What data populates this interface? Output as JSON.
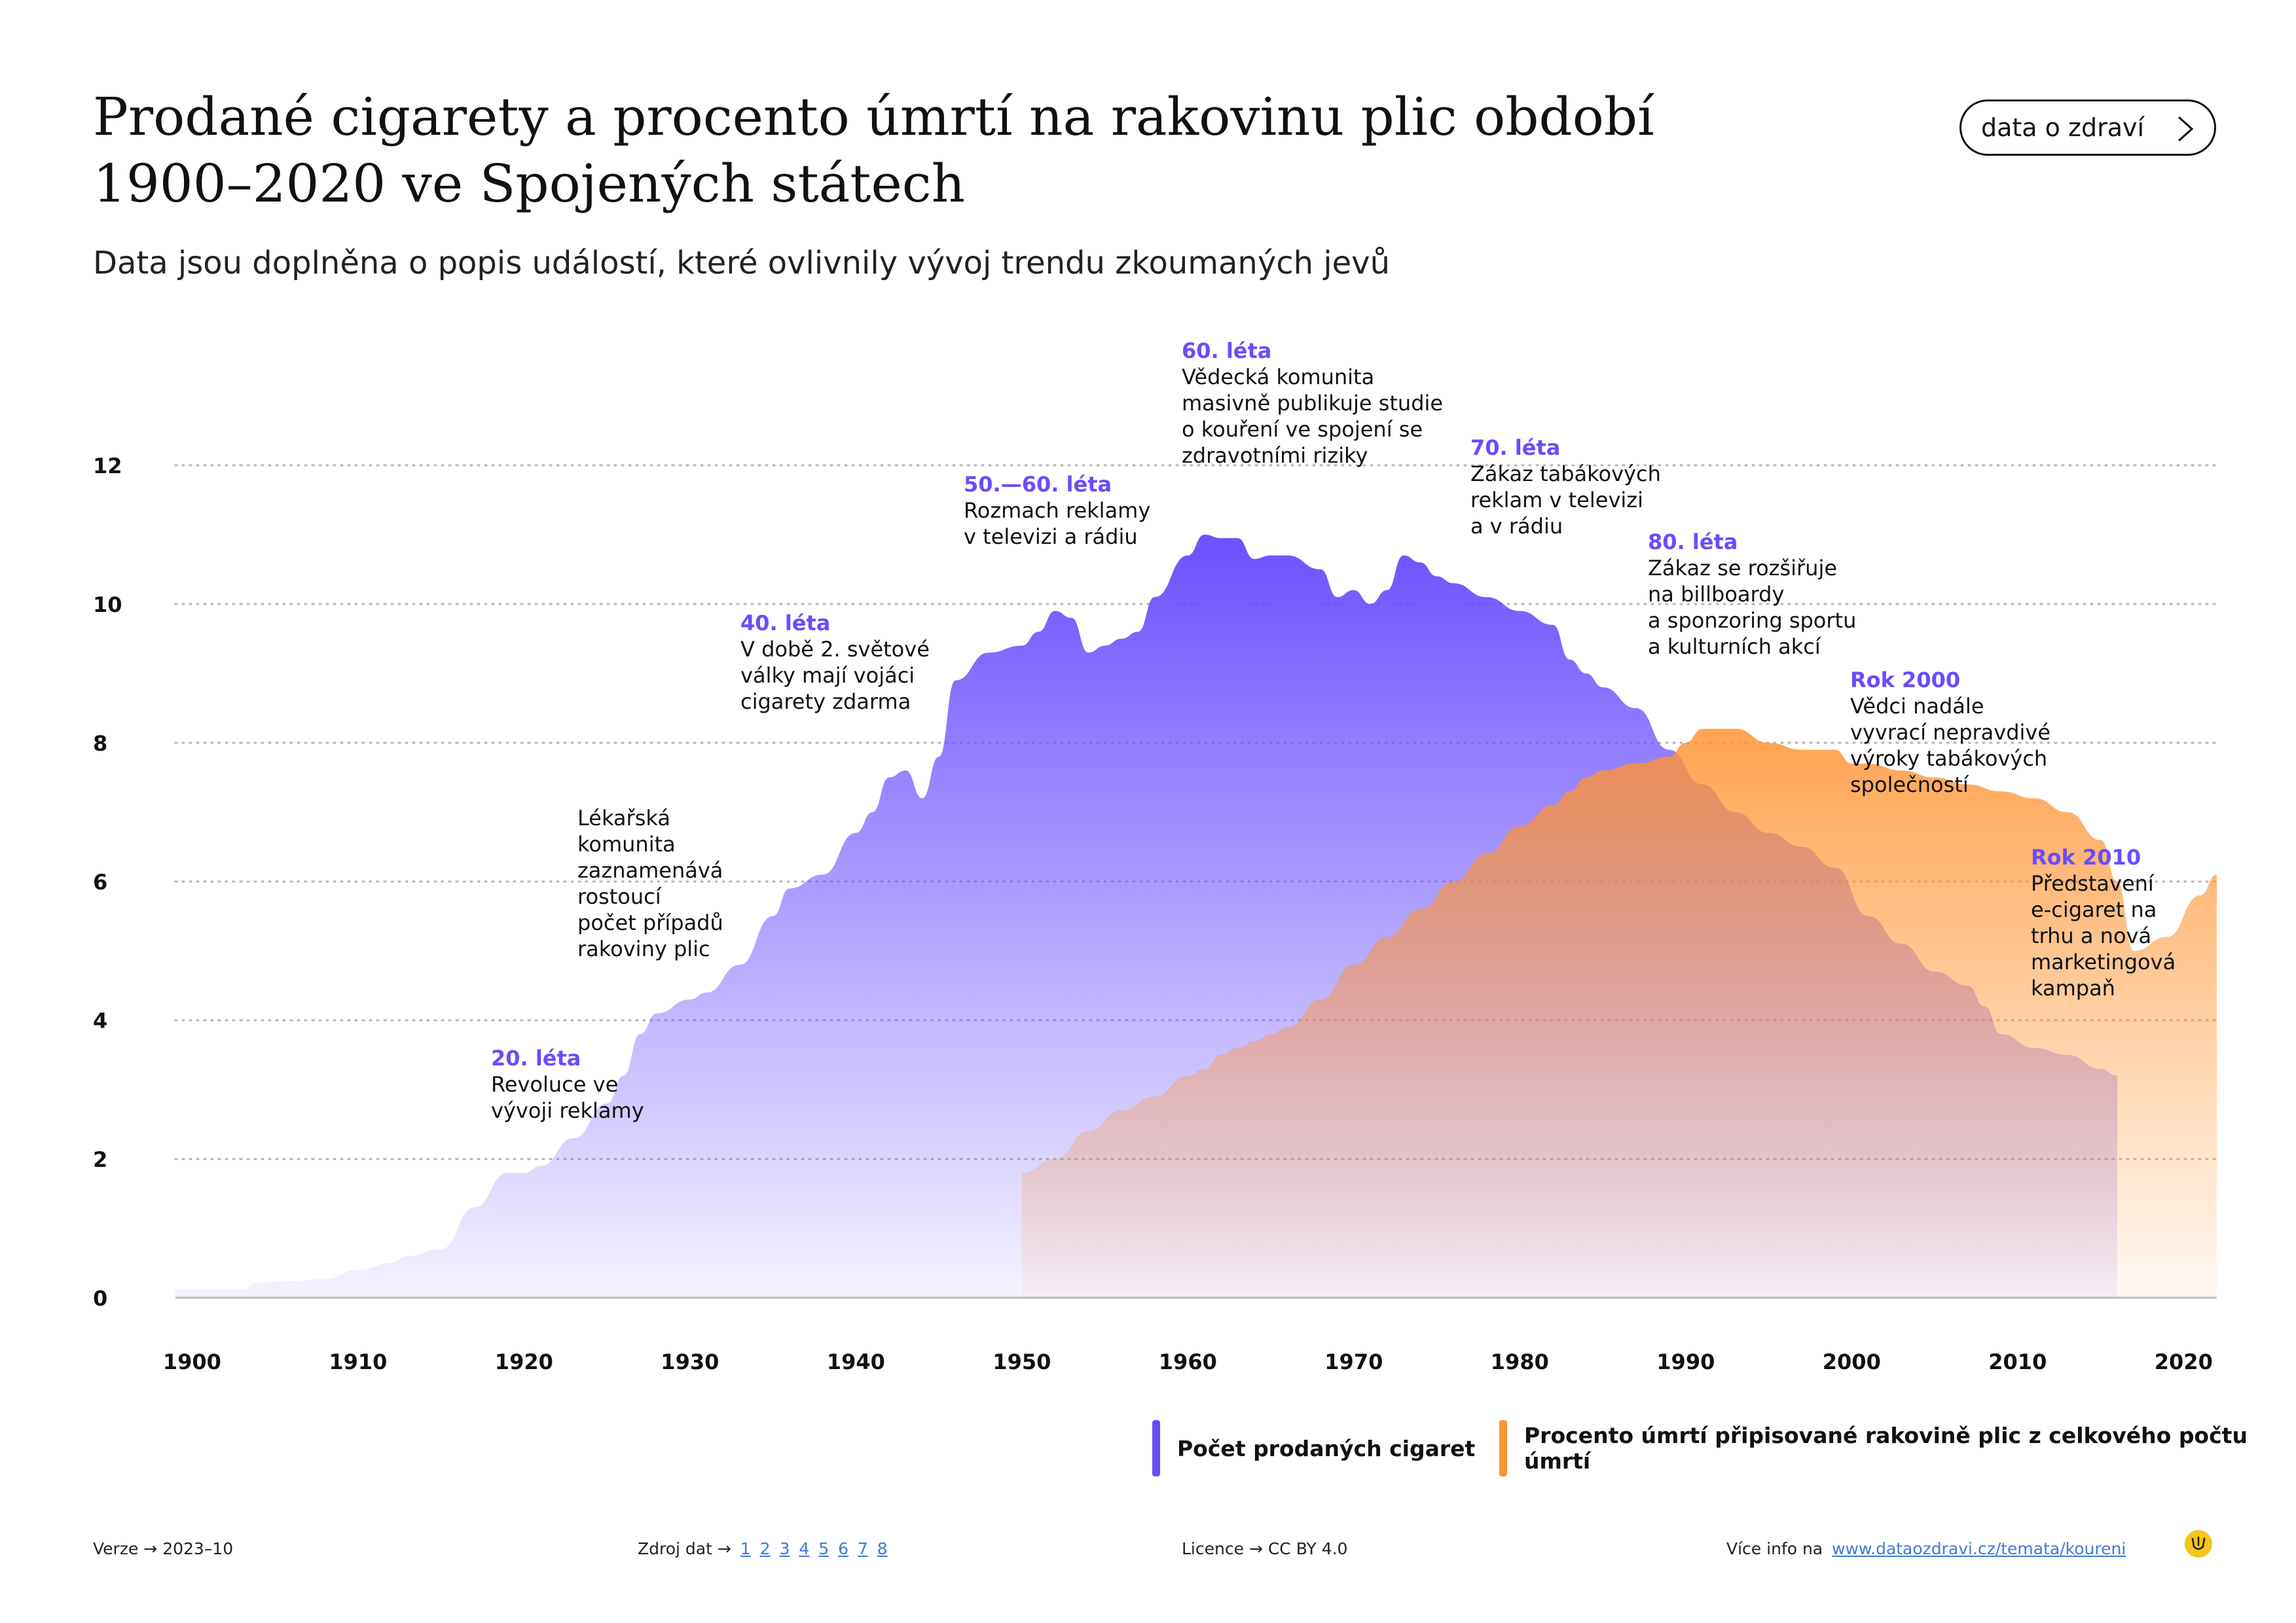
{
  "header": {
    "title_line1": "Prodané cigarety a procento úmrtí na rakovinu plic období",
    "title_line2": "1900–2020 ve Spojených státech",
    "subtitle": "Data jsou doplněna o popis událostí, které ovlivnily vývoj trendu zkoumaných jevů",
    "brand_button": "data o zdraví"
  },
  "colors": {
    "cigarettes": "#6a4cff",
    "lung_cancer": "#ff9433",
    "annotation_era": "#6a4cff",
    "link": "#3f7bd8"
  },
  "chart_data": {
    "type": "area",
    "title": "Prodané cigarety a procento úmrtí na rakovinu plic období 1900–2020 ve Spojených státech",
    "xlabel": "",
    "ylabel": "",
    "xlim": [
      1899,
      2022
    ],
    "ylim": [
      0,
      12
    ],
    "x_ticks": [
      1900,
      1910,
      1920,
      1930,
      1940,
      1950,
      1960,
      1970,
      1980,
      1990,
      2000,
      2010,
      2020
    ],
    "y_ticks": [
      0,
      2,
      4,
      6,
      8,
      10,
      12
    ],
    "grid": "horizontal dotted",
    "legend_position": "bottom-right",
    "series": [
      {
        "name": "Počet prodaných cigaret",
        "x": [
          1899,
          1902,
          1903,
          1904,
          1906,
          1908,
          1910,
          1912,
          1913,
          1915,
          1917,
          1919,
          1920,
          1921,
          1923,
          1925,
          1926,
          1927,
          1928,
          1930,
          1931,
          1933,
          1935,
          1936,
          1938,
          1940,
          1941,
          1942,
          1943,
          1944,
          1945,
          1946,
          1948,
          1950,
          1951,
          1952,
          1953,
          1954,
          1955,
          1956,
          1957,
          1958,
          1960,
          1961,
          1962,
          1963,
          1964,
          1965,
          1966,
          1968,
          1969,
          1970,
          1971,
          1972,
          1973,
          1974,
          1975,
          1976,
          1978,
          1980,
          1982,
          1983,
          1984,
          1985,
          1987,
          1989,
          1991,
          1993,
          1995,
          1997,
          1999,
          2001,
          2003,
          2005,
          2007,
          2008,
          2009,
          2011,
          2013,
          2015,
          2016
        ],
        "values": [
          0.12,
          0.12,
          0.12,
          0.22,
          0.24,
          0.27,
          0.4,
          0.5,
          0.6,
          0.7,
          1.3,
          1.8,
          1.8,
          1.9,
          2.3,
          2.8,
          3.2,
          3.8,
          4.1,
          4.3,
          4.4,
          4.8,
          5.5,
          5.9,
          6.1,
          6.7,
          7.0,
          7.5,
          7.6,
          7.2,
          7.8,
          8.9,
          9.3,
          9.4,
          9.6,
          9.9,
          9.8,
          9.3,
          9.4,
          9.5,
          9.6,
          10.1,
          10.7,
          11.0,
          10.95,
          10.95,
          10.65,
          10.7,
          10.7,
          10.5,
          10.1,
          10.2,
          10.0,
          10.2,
          10.7,
          10.6,
          10.4,
          10.3,
          10.1,
          9.9,
          9.7,
          9.2,
          9.0,
          8.8,
          8.5,
          7.9,
          7.4,
          7.0,
          6.7,
          6.5,
          6.2,
          5.5,
          5.1,
          4.7,
          4.5,
          4.2,
          3.8,
          3.6,
          3.5,
          3.3,
          3.2
        ]
      },
      {
        "name": "Procento úmrtí připisované rakovině plic z celkového počtu úmrtí",
        "x": [
          1950,
          1952,
          1954,
          1956,
          1958,
          1960,
          1961,
          1962,
          1963,
          1964,
          1965,
          1966,
          1968,
          1970,
          1972,
          1974,
          1976,
          1978,
          1980,
          1982,
          1983,
          1984,
          1985,
          1987,
          1989,
          1990,
          1991,
          1993,
          1995,
          1997,
          1999,
          2000,
          2001,
          2003,
          2005,
          2007,
          2009,
          2011,
          2013,
          2015,
          2016,
          2017,
          2019,
          2021,
          2022
        ],
        "values": [
          1.8,
          2.0,
          2.4,
          2.7,
          2.9,
          3.2,
          3.3,
          3.5,
          3.6,
          3.7,
          3.8,
          3.9,
          4.3,
          4.8,
          5.2,
          5.6,
          6.0,
          6.4,
          6.8,
          7.1,
          7.3,
          7.5,
          7.6,
          7.7,
          7.8,
          8.0,
          8.2,
          8.2,
          8.0,
          7.9,
          7.9,
          7.7,
          7.7,
          7.6,
          7.5,
          7.4,
          7.3,
          7.2,
          7.0,
          6.6,
          6.0,
          5.0,
          5.2,
          5.8,
          6.1
        ]
      }
    ]
  },
  "annotations": [
    {
      "era": "20. léta",
      "text": "Revoluce ve\nvývoji reklamy"
    },
    {
      "era": "",
      "text": "Lékařská\nkomunita\nzaznamenává\nrostoucí\npočet případů\nrakoviny plic"
    },
    {
      "era": "40. léta",
      "text": "V době 2. světové\nválky mají vojáci\ncigarety zdarma"
    },
    {
      "era": "50.—60. léta",
      "text": "Rozmach reklamy\nv televizi a rádiu"
    },
    {
      "era": "60. léta",
      "text": "Vědecká komunita\nmasivně publikuje studie\no kouření ve spojení se\nzdravotními riziky"
    },
    {
      "era": "70. léta",
      "text": "Zákaz tabákových\nreklam v televizi\na v rádiu"
    },
    {
      "era": "80. léta",
      "text": "Zákaz se rozšiřuje\nna billboardy\na sponzoring sportu\na kulturních akcí"
    },
    {
      "era": "Rok 2000",
      "text": "Vědci nadále\nvyvrací nepravdivé\nvýroky tabákových\nspolečností"
    },
    {
      "era": "Rok 2010",
      "text": "Představení\ne-cigaret na\ntrhu a nová\nmarketingová\nkampaň"
    }
  ],
  "legend": [
    {
      "label": "Počet prodaných cigaret"
    },
    {
      "label": "Procento úmrtí připisované rakovině plic z celkového počtu úmrtí"
    }
  ],
  "footer": {
    "version_label": "Verze",
    "version_value": "2023–10",
    "source_label": "Zdroj dat",
    "source_links": [
      "1",
      "2",
      "3",
      "4",
      "5",
      "6",
      "7",
      "8"
    ],
    "license_label": "Licence",
    "license_value": "CC BY 4.0",
    "more_info_label": "Více info na",
    "more_info_url": "www.dataozdravi.cz/temata/koureni"
  }
}
